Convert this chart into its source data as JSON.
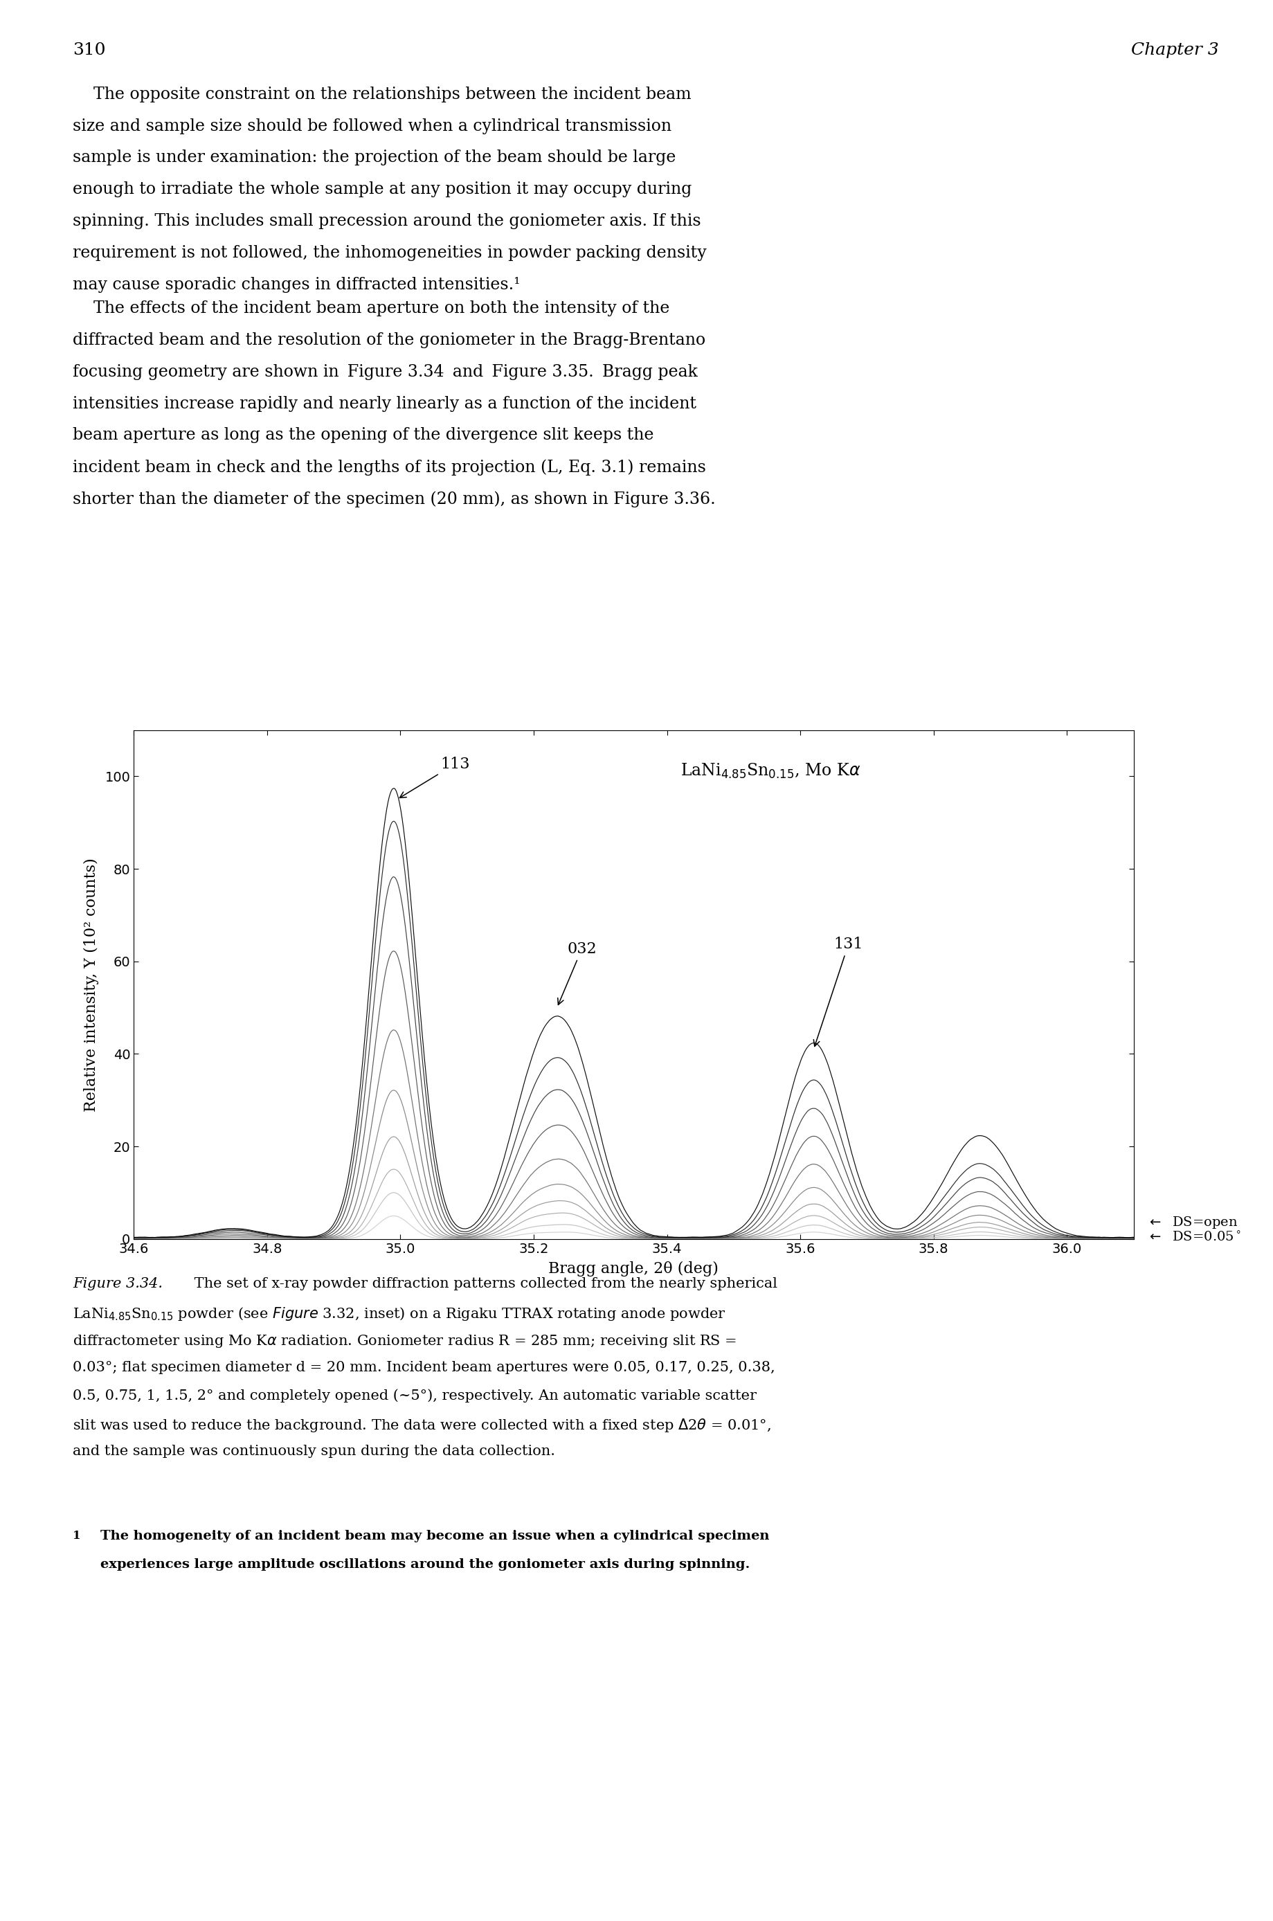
{
  "xlabel": "Bragg angle, 2θ (deg)",
  "ylabel": "Relative intensity, Y (10² counts)",
  "xlim": [
    34.6,
    36.1
  ],
  "ylim": [
    0,
    110
  ],
  "xticks": [
    34.6,
    34.8,
    35.0,
    35.2,
    35.4,
    35.6,
    35.8,
    36.0
  ],
  "yticks": [
    0,
    20,
    40,
    60,
    80,
    100
  ],
  "apertures": [
    0.05,
    0.17,
    0.25,
    0.38,
    0.5,
    0.75,
    1.0,
    1.5,
    2.0,
    5.0
  ],
  "page_number": "310",
  "chapter": "Chapter 3",
  "para1_lines": [
    "    The opposite constraint on the relationships between the incident beam",
    "size and sample size should be followed when a cylindrical transmission",
    "sample is under examination: the projection of the beam should be large",
    "enough to irradiate the whole sample at any position it may occupy during",
    "spinning. This includes small precession around the goniometer axis. If this",
    "requirement is not followed, the inhomogeneities in powder packing density",
    "may cause sporadic changes in diffracted intensities.¹"
  ],
  "para2_lines": [
    "    The effects of the incident beam aperture on both the intensity of the",
    "diffracted beam and the resolution of the goniometer in the Bragg-Brentano",
    "focusing geometry are shown in  Figure 3.34  and  Figure 3.35.  Bragg peak",
    "intensities increase rapidly and nearly linearly as a function of the incident",
    "beam aperture as long as the opening of the divergence slit keeps the",
    "incident beam in check and the lengths of its projection (L, Eq. 3.1) remains",
    "shorter than the diameter of the specimen (20 mm), as shown in Figure 3.36."
  ],
  "caption_lines": [
    "Figure 3.34. The set of x-ray powder diffraction patterns collected from the nearly spherical",
    "LaNi₄.₈₅Sn₀.₁₅ powder (see Figure 3.32, inset) on a Rigaku TTRAX rotating anode powder",
    "diffractometer using Mo Kα radiation. Goniometer radius R = 285 mm; receiving slit RS =",
    "0.03°; flat specimen diameter d = 20 mm. Incident beam apertures were 0.05, 0.17, 0.25, 0.38,",
    "0.5, 0.75, 1, 1.5, 2° and completely opened (~5°), respectively. An automatic variable scatter",
    "slit was used to reduce the background. The data were collected with a fixed step Δ2θ = 0.01°,",
    "and the sample was continuously spun during the data collection."
  ],
  "footnote_lines": [
    "The homogeneity of an incident beam may become an issue when a cylindrical specimen",
    "experiences large amplitude oscillations around the goniometer axis during spinning."
  ],
  "peak_amps_113": [
    5,
    10,
    15,
    22,
    32,
    45,
    62,
    78,
    90,
    97
  ],
  "peak_amps_032": [
    2,
    4,
    7,
    10,
    14,
    20,
    28,
    36,
    43,
    52
  ],
  "peak_amps_131": [
    1.5,
    3,
    5,
    7.5,
    11,
    16,
    22,
    28,
    34,
    42
  ],
  "peak_amps_4th": [
    0.8,
    1.5,
    2.5,
    3.5,
    5,
    7,
    10,
    13,
    16,
    22
  ],
  "colors": [
    "#d0d0d0",
    "#c0c0c0",
    "#aaaaaa",
    "#969696",
    "#808080",
    "#686868",
    "#505050",
    "#383838",
    "#202020",
    "#000000"
  ]
}
